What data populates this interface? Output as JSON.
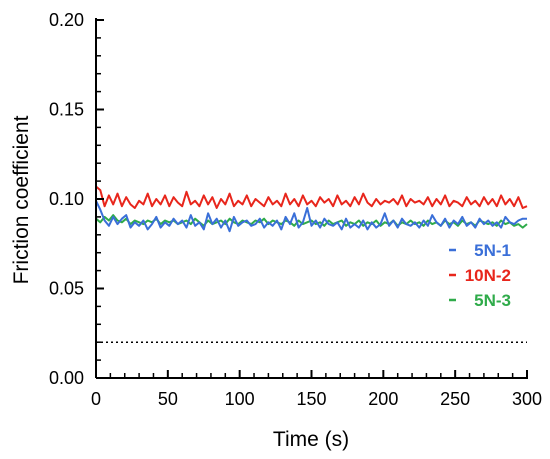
{
  "chart_data": {
    "type": "line",
    "xlabel": "Time (s)",
    "ylabel": "Friction coefficient",
    "xlim": [
      0,
      300
    ],
    "ylim": [
      0,
      0.2
    ],
    "xticks": [
      "0",
      "50",
      "100",
      "150",
      "200",
      "250",
      "300"
    ],
    "yticks": [
      "0.00",
      "0.05",
      "0.10",
      "0.15",
      "0.20"
    ],
    "legend_position": "right",
    "grid": false,
    "reference_line": {
      "y": 0.02,
      "style": "dotted"
    },
    "x": [
      0,
      3,
      6,
      9,
      12,
      15,
      18,
      21,
      24,
      27,
      30,
      33,
      36,
      39,
      42,
      45,
      48,
      51,
      54,
      57,
      60,
      63,
      66,
      69,
      72,
      75,
      78,
      81,
      84,
      87,
      90,
      93,
      96,
      99,
      102,
      105,
      108,
      111,
      114,
      117,
      120,
      123,
      126,
      129,
      132,
      135,
      138,
      141,
      144,
      147,
      150,
      153,
      156,
      159,
      162,
      165,
      168,
      171,
      174,
      177,
      180,
      183,
      186,
      189,
      192,
      195,
      198,
      201,
      204,
      207,
      210,
      213,
      216,
      219,
      222,
      225,
      228,
      231,
      234,
      237,
      240,
      243,
      246,
      249,
      252,
      255,
      258,
      261,
      264,
      267,
      270,
      273,
      276,
      279,
      282,
      285,
      288,
      291,
      294,
      297,
      300
    ],
    "series": [
      {
        "name": "5N-1",
        "color": "#3a6fd8",
        "values": [
          0.099,
          0.094,
          0.088,
          0.085,
          0.09,
          0.086,
          0.089,
          0.091,
          0.084,
          0.087,
          0.085,
          0.088,
          0.083,
          0.086,
          0.09,
          0.084,
          0.087,
          0.085,
          0.089,
          0.086,
          0.088,
          0.084,
          0.091,
          0.085,
          0.087,
          0.083,
          0.092,
          0.086,
          0.089,
          0.084,
          0.088,
          0.082,
          0.09,
          0.085,
          0.087,
          0.088,
          0.085,
          0.086,
          0.089,
          0.084,
          0.087,
          0.085,
          0.088,
          0.083,
          0.09,
          0.086,
          0.092,
          0.084,
          0.087,
          0.095,
          0.085,
          0.088,
          0.084,
          0.089,
          0.086,
          0.085,
          0.087,
          0.083,
          0.089,
          0.084,
          0.086,
          0.084,
          0.088,
          0.083,
          0.087,
          0.084,
          0.086,
          0.092,
          0.085,
          0.088,
          0.084,
          0.089,
          0.086,
          0.085,
          0.087,
          0.084,
          0.088,
          0.085,
          0.091,
          0.087,
          0.085,
          0.089,
          0.084,
          0.088,
          0.086,
          0.09,
          0.085,
          0.087,
          0.084,
          0.089,
          0.086,
          0.088,
          0.085,
          0.087,
          0.084,
          0.09,
          0.087,
          0.086,
          0.088,
          0.089,
          0.089
        ]
      },
      {
        "name": "10N-2",
        "color": "#e8261c",
        "values": [
          0.107,
          0.105,
          0.096,
          0.102,
          0.097,
          0.103,
          0.096,
          0.101,
          0.097,
          0.095,
          0.099,
          0.097,
          0.103,
          0.096,
          0.1,
          0.097,
          0.102,
          0.096,
          0.101,
          0.098,
          0.096,
          0.104,
          0.097,
          0.099,
          0.096,
          0.102,
          0.097,
          0.101,
          0.095,
          0.1,
          0.097,
          0.103,
          0.096,
          0.099,
          0.097,
          0.102,
          0.096,
          0.1,
          0.098,
          0.096,
          0.101,
          0.097,
          0.099,
          0.096,
          0.103,
          0.097,
          0.1,
          0.096,
          0.102,
          0.097,
          0.099,
          0.096,
          0.101,
          0.098,
          0.1,
          0.096,
          0.102,
          0.097,
          0.099,
          0.096,
          0.101,
          0.097,
          0.103,
          0.098,
          0.096,
          0.1,
          0.097,
          0.099,
          0.098,
          0.1,
          0.097,
          0.102,
          0.096,
          0.1,
          0.098,
          0.099,
          0.097,
          0.101,
          0.096,
          0.1,
          0.097,
          0.102,
          0.096,
          0.099,
          0.098,
          0.096,
          0.101,
          0.097,
          0.099,
          0.096,
          0.101,
          0.097,
          0.1,
          0.096,
          0.102,
          0.097,
          0.1,
          0.096,
          0.101,
          0.095,
          0.096
        ]
      },
      {
        "name": "5N-3",
        "color": "#2fab4a",
        "values": [
          0.089,
          0.087,
          0.09,
          0.088,
          0.091,
          0.088,
          0.087,
          0.089,
          0.086,
          0.088,
          0.087,
          0.086,
          0.088,
          0.087,
          0.089,
          0.086,
          0.088,
          0.087,
          0.088,
          0.086,
          0.087,
          0.088,
          0.086,
          0.089,
          0.087,
          0.085,
          0.088,
          0.086,
          0.087,
          0.088,
          0.086,
          0.089,
          0.087,
          0.086,
          0.088,
          0.087,
          0.086,
          0.088,
          0.087,
          0.089,
          0.086,
          0.088,
          0.087,
          0.086,
          0.088,
          0.087,
          0.085,
          0.088,
          0.086,
          0.087,
          0.088,
          0.086,
          0.087,
          0.085,
          0.088,
          0.086,
          0.087,
          0.088,
          0.085,
          0.087,
          0.086,
          0.088,
          0.085,
          0.087,
          0.086,
          0.088,
          0.085,
          0.087,
          0.086,
          0.088,
          0.085,
          0.087,
          0.086,
          0.088,
          0.086,
          0.087,
          0.085,
          0.088,
          0.086,
          0.087,
          0.085,
          0.088,
          0.086,
          0.087,
          0.085,
          0.088,
          0.086,
          0.087,
          0.085,
          0.088,
          0.087,
          0.086,
          0.087,
          0.085,
          0.088,
          0.086,
          0.087,
          0.085,
          0.086,
          0.084,
          0.086
        ]
      }
    ]
  }
}
